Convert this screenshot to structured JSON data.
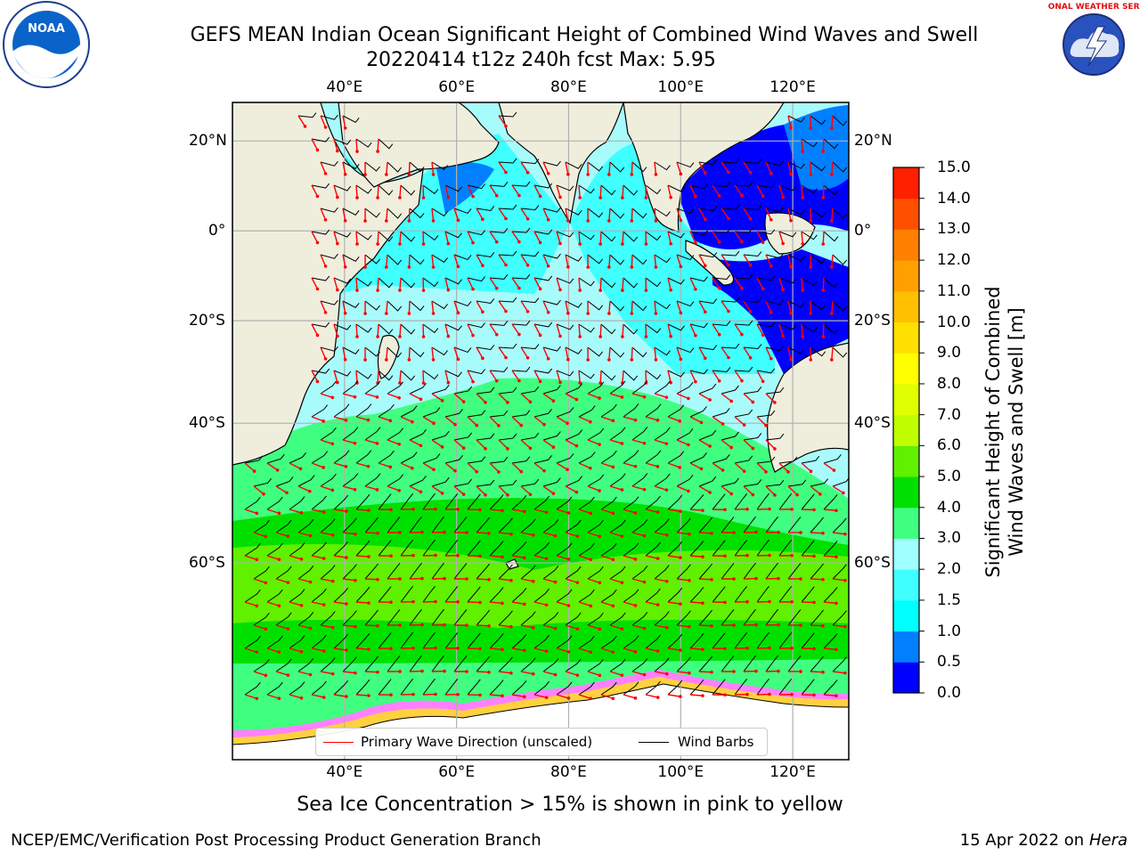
{
  "title": {
    "line1": "GEFS MEAN Indian Ocean Significant Height of Combined Wind Waves and Swell",
    "line2": "20220414 t12z 240h fcst   Max: 5.95"
  },
  "map": {
    "lon_range": [
      20,
      130
    ],
    "lat_range": [
      -76,
      28
    ],
    "lon_ticks": [
      "40°E",
      "60°E",
      "80°E",
      "100°E",
      "120°E"
    ],
    "lat_ticks": [
      "20°N",
      "0°",
      "20°S",
      "40°S",
      "60°S"
    ],
    "land_color": "#efeedd",
    "coast_color": "#000000",
    "grid_color": "#b0b0b0"
  },
  "colorbar": {
    "label_line1": "Significant Height of Combined",
    "label_line2": "Wind Waves and Swell [m]",
    "ticks": [
      "0.0",
      "0.5",
      "1.0",
      "1.5",
      "2.0",
      "3.0",
      "4.0",
      "5.0",
      "6.0",
      "7.0",
      "8.0",
      "9.0",
      "10.0",
      "11.0",
      "12.0",
      "13.0",
      "14.0",
      "15.0"
    ],
    "colors": [
      "#0000ff",
      "#0080ff",
      "#00ffff",
      "#40ffff",
      "#a0ffff",
      "#40ff80",
      "#00e000",
      "#60f000",
      "#c0ff00",
      "#e0ff00",
      "#ffff00",
      "#ffe000",
      "#ffc000",
      "#ffa000",
      "#ff8000",
      "#ff5000",
      "#ff2000"
    ]
  },
  "legend": {
    "wave_direction": "Primary Wave Direction (unscaled)",
    "wind_barbs": "Wind Barbs",
    "wave_color": "#ff0000",
    "barb_color": "#000000"
  },
  "footnote": "Sea Ice Concentration > 15% is shown in pink to yellow",
  "credits": {
    "left": "NCEP/EMC/Verification Post Processing Product Generation Branch",
    "right_prefix": "15 Apr 2022 on ",
    "right_host": "Hera"
  },
  "logos": {
    "left": "NOAA",
    "right": "NATIONAL WEATHER SERVICE"
  }
}
